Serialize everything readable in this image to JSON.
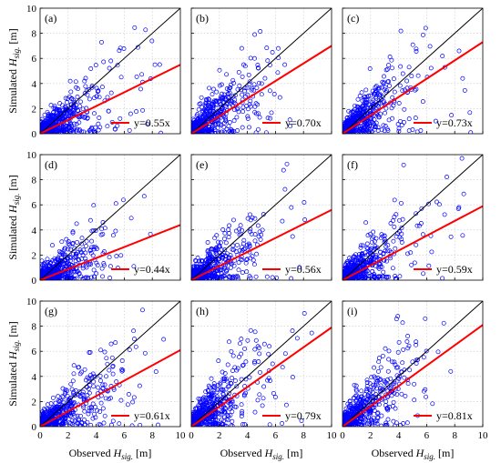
{
  "chart_data": {
    "type": "scatter",
    "layout": {
      "rows": 3,
      "cols": 3
    },
    "x_axis_label": {
      "prefix": "Observed",
      "symbol": "H",
      "subscript": "sig.",
      "unit": "[m]"
    },
    "y_axis_label": {
      "prefix": "Simulated",
      "symbol": "H",
      "subscript": "sig.",
      "unit": "[m]"
    },
    "xlim": [
      0,
      10
    ],
    "ylim": [
      0,
      10
    ],
    "xticks": [
      "0",
      "2",
      "4",
      "6",
      "8",
      "10"
    ],
    "yticks": [
      "0",
      "2",
      "4",
      "6",
      "8",
      "10"
    ],
    "grid": true,
    "legend_position": "bottom-right",
    "point_color": "#0000ff",
    "fit_color": "#ff0000",
    "identity_color": "#000000",
    "panels": [
      {
        "label": "(a)",
        "slope": 0.55,
        "legend": "y=0.55x"
      },
      {
        "label": "(b)",
        "slope": 0.7,
        "legend": "y=0.70x"
      },
      {
        "label": "(c)",
        "slope": 0.73,
        "legend": "y=0.73x"
      },
      {
        "label": "(d)",
        "slope": 0.44,
        "legend": "y=0.44x"
      },
      {
        "label": "(e)",
        "slope": 0.56,
        "legend": "y=0.56x"
      },
      {
        "label": "(f)",
        "slope": 0.59,
        "legend": "y=0.59x"
      },
      {
        "label": "(g)",
        "slope": 0.61,
        "legend": "y=0.61x"
      },
      {
        "label": "(h)",
        "slope": 0.79,
        "legend": "y=0.79x"
      },
      {
        "label": "(i)",
        "slope": 0.81,
        "legend": "y=0.81x"
      }
    ]
  }
}
